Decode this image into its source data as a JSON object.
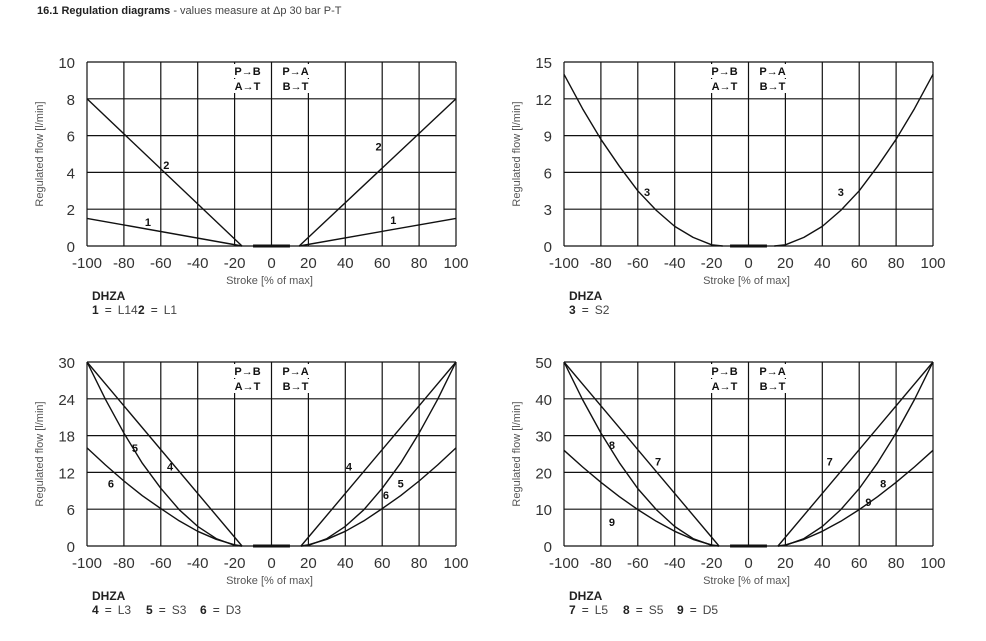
{
  "header": {
    "title": "16.1 Regulation diagrams",
    "subtitle": " - values measure at Δp 30 bar P-T"
  },
  "chart_data": [
    {
      "type": "line",
      "xlabel": "Stroke [% of max]",
      "ylabel": "Regulated flow [l/min]",
      "xlim": [
        -100,
        100
      ],
      "ylim": [
        0,
        10
      ],
      "xticks": [
        "-100",
        "-80",
        "-60",
        "-40",
        "-20",
        "0",
        "20",
        "40",
        "60",
        "80",
        "100"
      ],
      "yticks": [
        "0",
        "2",
        "4",
        "6",
        "8",
        "10"
      ],
      "grid": true,
      "direction_labels": {
        "left": [
          "P→B",
          "A→T"
        ],
        "right": [
          "P→A",
          "B→T"
        ]
      },
      "deadband": [
        -10,
        10
      ],
      "series": [
        {
          "name": "1",
          "branch": "left",
          "x": [
            -100,
            -16
          ],
          "y": [
            1.5,
            0
          ]
        },
        {
          "name": "1",
          "branch": "right",
          "x": [
            15,
            100
          ],
          "y": [
            0,
            1.5
          ]
        },
        {
          "name": "2",
          "branch": "left",
          "x": [
            -100,
            -16
          ],
          "y": [
            8,
            0
          ]
        },
        {
          "name": "2",
          "branch": "right",
          "x": [
            15,
            100
          ],
          "y": [
            0,
            8
          ]
        }
      ],
      "annotations": [
        {
          "text": "2",
          "x": -57,
          "y": 4.4
        },
        {
          "text": "2",
          "x": 58,
          "y": 5.4
        },
        {
          "text": "1",
          "x": -67,
          "y": 1.3
        },
        {
          "text": "1",
          "x": 66,
          "y": 1.4
        }
      ],
      "legend": {
        "model": "DHZA",
        "items": [
          {
            "num": "1",
            "code": "L14"
          },
          {
            "num": "2",
            "code": "L1"
          }
        ]
      }
    },
    {
      "type": "line",
      "xlabel": "Stroke [% of max]",
      "ylabel": "Regulated flow [l/min]",
      "xlim": [
        -100,
        100
      ],
      "ylim": [
        0,
        15
      ],
      "xticks": [
        "-100",
        "-80",
        "-60",
        "-40",
        "-20",
        "0",
        "20",
        "40",
        "60",
        "80",
        "100"
      ],
      "yticks": [
        "0",
        "3",
        "6",
        "9",
        "12",
        "15"
      ],
      "grid": true,
      "direction_labels": {
        "left": [
          "P→B",
          "A→T"
        ],
        "right": [
          "P→A",
          "B→T"
        ]
      },
      "deadband": [
        -10,
        10
      ],
      "series": [
        {
          "name": "3",
          "branch": "left",
          "x": [
            -100,
            -90,
            -80,
            -70,
            -60,
            -50,
            -40,
            -30,
            -20,
            -14
          ],
          "y": [
            14,
            11.2,
            8.7,
            6.5,
            4.5,
            2.9,
            1.6,
            0.7,
            0.1,
            0
          ]
        },
        {
          "name": "3",
          "branch": "right",
          "x": [
            14,
            20,
            30,
            40,
            50,
            60,
            70,
            80,
            90,
            100
          ],
          "y": [
            0,
            0.1,
            0.7,
            1.6,
            2.9,
            4.5,
            6.5,
            8.7,
            11.2,
            14
          ]
        }
      ],
      "annotations": [
        {
          "text": "3",
          "x": -55,
          "y": 4.4
        },
        {
          "text": "3",
          "x": 50,
          "y": 4.4
        }
      ],
      "legend": {
        "model": "DHZA",
        "items": [
          {
            "num": "3",
            "code": "S2"
          }
        ]
      }
    },
    {
      "type": "line",
      "xlabel": "Stroke [% of max]",
      "ylabel": "Regulated flow [l/min]",
      "xlim": [
        -100,
        100
      ],
      "ylim": [
        0,
        30
      ],
      "xticks": [
        "-100",
        "-80",
        "-60",
        "-40",
        "-20",
        "0",
        "20",
        "40",
        "60",
        "80",
        "100"
      ],
      "yticks": [
        "0",
        "6",
        "12",
        "18",
        "24",
        "30"
      ],
      "grid": true,
      "direction_labels": {
        "left": [
          "P→B",
          "A→T"
        ],
        "right": [
          "P→A",
          "B→T"
        ]
      },
      "deadband": [
        -10,
        10
      ],
      "series": [
        {
          "name": "4",
          "branch": "left",
          "x": [
            -100,
            -16
          ],
          "y": [
            30,
            0
          ]
        },
        {
          "name": "4",
          "branch": "right",
          "x": [
            16,
            100
          ],
          "y": [
            0,
            30
          ]
        },
        {
          "name": "5",
          "branch": "left",
          "x": [
            -100,
            -90,
            -80,
            -70,
            -60,
            -50,
            -40,
            -30,
            -20,
            -16
          ],
          "y": [
            30,
            23.9,
            18.4,
            13.5,
            9.4,
            5.9,
            3.2,
            1.2,
            0.1,
            0
          ]
        },
        {
          "name": "5",
          "branch": "right",
          "x": [
            16,
            20,
            30,
            40,
            50,
            60,
            70,
            80,
            90,
            100
          ],
          "y": [
            0,
            0.1,
            1.2,
            3.2,
            5.9,
            9.4,
            13.5,
            18.4,
            23.9,
            30
          ]
        },
        {
          "name": "6",
          "branch": "left",
          "x": [
            -100,
            -90,
            -80,
            -70,
            -60,
            -50,
            -40,
            -30,
            -20,
            -16
          ],
          "y": [
            16,
            13.2,
            10.6,
            8.2,
            6.1,
            4.1,
            2.4,
            1.1,
            0.2,
            0
          ]
        },
        {
          "name": "6",
          "branch": "right",
          "x": [
            16,
            20,
            30,
            40,
            50,
            60,
            70,
            80,
            90,
            100
          ],
          "y": [
            0,
            0.2,
            1.1,
            2.4,
            4.1,
            6.1,
            8.2,
            10.6,
            13.2,
            16
          ]
        }
      ],
      "annotations": [
        {
          "text": "5",
          "x": -74,
          "y": 16
        },
        {
          "text": "4",
          "x": -55,
          "y": 13
        },
        {
          "text": "6",
          "x": -87,
          "y": 10.2
        },
        {
          "text": "4",
          "x": 42,
          "y": 13
        },
        {
          "text": "5",
          "x": 70,
          "y": 10.2
        },
        {
          "text": "6",
          "x": 62,
          "y": 8.3
        }
      ],
      "legend": {
        "model": "DHZA",
        "items": [
          {
            "num": "4",
            "code": "L3"
          },
          {
            "num": "5",
            "code": "S3"
          },
          {
            "num": "6",
            "code": "D3"
          }
        ]
      }
    },
    {
      "type": "line",
      "xlabel": "Stroke [% of max]",
      "ylabel": "Regulated flow [l/min]",
      "xlim": [
        -100,
        100
      ],
      "ylim": [
        0,
        50
      ],
      "xticks": [
        "-100",
        "-80",
        "-60",
        "-40",
        "-20",
        "0",
        "20",
        "40",
        "60",
        "80",
        "100"
      ],
      "yticks": [
        "0",
        "10",
        "20",
        "30",
        "40",
        "50"
      ],
      "grid": true,
      "direction_labels": {
        "left": [
          "P→B",
          "A→T"
        ],
        "right": [
          "P→A",
          "B→T"
        ]
      },
      "deadband": [
        -10,
        10
      ],
      "series": [
        {
          "name": "7",
          "branch": "left",
          "x": [
            -100,
            -16
          ],
          "y": [
            50,
            0
          ]
        },
        {
          "name": "7",
          "branch": "right",
          "x": [
            16,
            100
          ],
          "y": [
            0,
            50
          ]
        },
        {
          "name": "8",
          "branch": "left",
          "x": [
            -100,
            -90,
            -80,
            -70,
            -60,
            -50,
            -40,
            -30,
            -20,
            -16
          ],
          "y": [
            50,
            39.8,
            30.7,
            22.6,
            15.6,
            9.9,
            5.3,
            2.0,
            0.2,
            0
          ]
        },
        {
          "name": "8",
          "branch": "right",
          "x": [
            16,
            20,
            30,
            40,
            50,
            60,
            70,
            80,
            90,
            100
          ],
          "y": [
            0,
            0.2,
            2.0,
            5.3,
            9.9,
            15.6,
            22.6,
            30.7,
            39.8,
            50
          ]
        },
        {
          "name": "9",
          "branch": "left",
          "x": [
            -100,
            -90,
            -80,
            -70,
            -60,
            -50,
            -40,
            -30,
            -20,
            -16
          ],
          "y": [
            26,
            21.5,
            17.3,
            13.4,
            9.9,
            6.7,
            4.0,
            1.8,
            0.3,
            0
          ]
        },
        {
          "name": "9",
          "branch": "right",
          "x": [
            16,
            20,
            30,
            40,
            50,
            60,
            70,
            80,
            90,
            100
          ],
          "y": [
            0,
            0.3,
            1.8,
            4.0,
            6.7,
            9.9,
            13.4,
            17.3,
            21.5,
            26
          ]
        }
      ],
      "annotations": [
        {
          "text": "8",
          "x": -74,
          "y": 27.5
        },
        {
          "text": "7",
          "x": -49,
          "y": 23
        },
        {
          "text": "9",
          "x": -74,
          "y": 6.5
        },
        {
          "text": "7",
          "x": 44,
          "y": 23
        },
        {
          "text": "8",
          "x": 73,
          "y": 17
        },
        {
          "text": "9",
          "x": 65,
          "y": 12
        }
      ],
      "legend": {
        "model": "DHZA",
        "items": [
          {
            "num": "7",
            "code": "L5"
          },
          {
            "num": "8",
            "code": "S5"
          },
          {
            "num": "9",
            "code": "D5"
          }
        ]
      }
    }
  ]
}
